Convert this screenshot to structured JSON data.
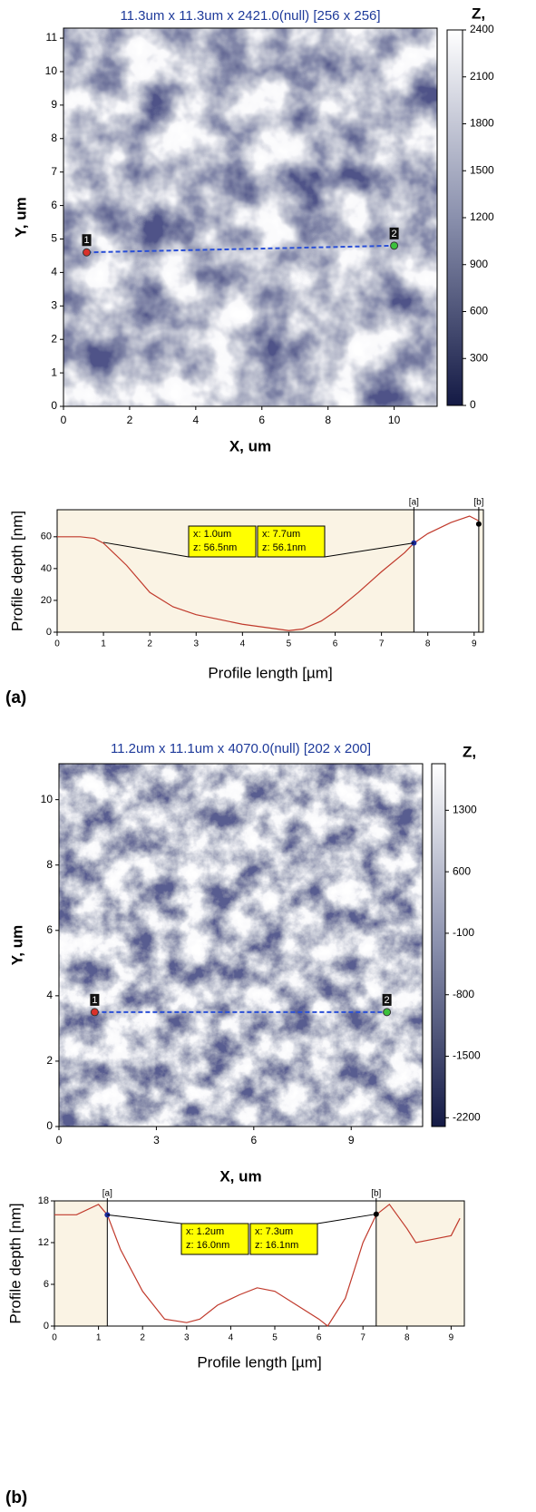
{
  "panel_labels": [
    "(a)",
    "(b)"
  ],
  "chart_data": [
    {
      "type": "image",
      "title": "11.3um x 11.3um x 2421.0(null) [256 x 256]",
      "xlabel": "X, um",
      "ylabel": "Y, um",
      "xlim": [
        0,
        11.3
      ],
      "ylim": [
        0,
        11.3
      ],
      "xticks": [
        0,
        2,
        4,
        6,
        8,
        10
      ],
      "yticks": [
        0,
        1,
        2,
        3,
        4,
        5,
        6,
        7,
        8,
        9,
        10,
        11
      ],
      "colorbar": {
        "label": "Z,",
        "lim": [
          0,
          2400
        ],
        "ticks": [
          0,
          300,
          600,
          900,
          1200,
          1500,
          1800,
          2100,
          2400
        ]
      },
      "markers": {
        "labels": [
          "1",
          "2"
        ],
        "x": [
          0.7,
          10.0
        ],
        "y": [
          4.6,
          4.8
        ],
        "colors": [
          "#d9302a",
          "#3cc23c"
        ]
      }
    },
    {
      "type": "line",
      "xlabel": "Profile length [µm]",
      "ylabel": "Profile depth [nm]",
      "xlim": [
        0,
        9.2
      ],
      "ylim": [
        0,
        77
      ],
      "xticks": [
        0,
        1,
        2,
        3,
        4,
        5,
        6,
        7,
        8,
        9
      ],
      "yticks": [
        0,
        20,
        40,
        60
      ],
      "color": "#c0392b",
      "x": [
        0,
        0.5,
        0.8,
        1.0,
        1.5,
        2.0,
        2.5,
        3.0,
        3.5,
        4.0,
        4.5,
        5.0,
        5.3,
        5.7,
        6.0,
        6.5,
        7.0,
        7.5,
        7.7,
        8.0,
        8.5,
        8.9,
        9.1
      ],
      "values": [
        60,
        60,
        59,
        56,
        42,
        25,
        16,
        11,
        8,
        5,
        3,
        1,
        2,
        7,
        13,
        25,
        38,
        50,
        56,
        62,
        69,
        73,
        70
      ],
      "cursors": {
        "labels": [
          "[a]",
          "[b]"
        ],
        "x": [
          7.7,
          9.1
        ],
        "y": [
          56.1,
          68
        ],
        "colors": [
          "#1a2a9a",
          "#000000"
        ]
      },
      "annotations": [
        {
          "x": 1.0,
          "y": 56.5,
          "label": [
            "x: 1.0um",
            "z: 56.5nm"
          ]
        },
        {
          "x": 7.7,
          "y": 56.1,
          "label": [
            "x: 7.7um",
            "z: 56.1nm"
          ]
        }
      ]
    },
    {
      "type": "image",
      "title": "11.2um x 11.1um x 4070.0(null) [202 x 200]",
      "xlabel": "X, um",
      "ylabel": "Y, um",
      "xlim": [
        0,
        11.2
      ],
      "ylim": [
        0,
        11.1
      ],
      "xticks": [
        0,
        3,
        6,
        9
      ],
      "yticks": [
        0,
        2,
        4,
        6,
        8,
        10
      ],
      "colorbar": {
        "label": "Z,",
        "lim": [
          -2300,
          1830
        ],
        "ticks": [
          1300,
          600,
          -100,
          -800,
          -1500,
          -2200
        ]
      },
      "markers": {
        "labels": [
          "1",
          "2"
        ],
        "x": [
          1.1,
          10.1
        ],
        "y": [
          3.5,
          3.5
        ],
        "colors": [
          "#d9302a",
          "#3cc23c"
        ]
      }
    },
    {
      "type": "line",
      "xlabel": "Profile length [µm]",
      "ylabel": "Profile depth [nm]",
      "xlim": [
        0,
        9.3
      ],
      "ylim": [
        0,
        18
      ],
      "xticks": [
        0,
        1,
        2,
        3,
        4,
        5,
        6,
        7,
        8,
        9
      ],
      "yticks": [
        0,
        6,
        12,
        18
      ],
      "color": "#c0392b",
      "x": [
        0,
        0.5,
        1.0,
        1.2,
        1.5,
        2.0,
        2.5,
        3.0,
        3.3,
        3.7,
        4.2,
        4.6,
        5.0,
        5.5,
        6.0,
        6.2,
        6.6,
        7.0,
        7.3,
        7.6,
        8.0,
        8.2,
        8.6,
        9.0,
        9.2
      ],
      "values": [
        16,
        16,
        17.5,
        16,
        11,
        5,
        1,
        0.5,
        1,
        3,
        4.5,
        5.5,
        5,
        3,
        1,
        0,
        4,
        12,
        16,
        17.5,
        14,
        12,
        12.5,
        13,
        15.5
      ],
      "cursors": {
        "labels": [
          "[a]",
          "[b]"
        ],
        "x": [
          1.2,
          7.3
        ],
        "y": [
          16.0,
          16.1
        ],
        "colors": [
          "#1a2a9a",
          "#000000"
        ]
      },
      "annotations": [
        {
          "x": 1.2,
          "y": 16.0,
          "label": [
            "x: 1.2um",
            "z: 16.0nm"
          ]
        },
        {
          "x": 7.3,
          "y": 16.1,
          "label": [
            "x: 7.3um",
            "z: 16.1nm"
          ]
        }
      ]
    }
  ]
}
